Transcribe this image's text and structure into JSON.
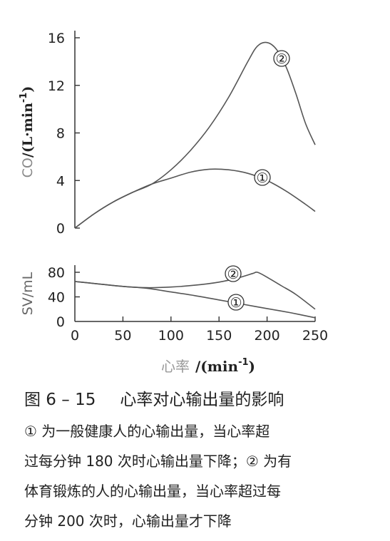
{
  "chart_data": [
    {
      "type": "line",
      "ylabel_prefix": "CO",
      "ylabel_units": "/(L·min",
      "ylabel_exp": "-1",
      "ylabel_close": ")",
      "ylim": [
        0,
        16
      ],
      "yticks": [
        "0",
        "4",
        "8",
        "12",
        "16"
      ],
      "ytick_values": [
        0,
        4,
        8,
        12,
        16
      ],
      "xlim": [
        0,
        250
      ],
      "grid": false,
      "series": [
        {
          "name": "①",
          "x": [
            0,
            20,
            40,
            60,
            80,
            100,
            120,
            140,
            160,
            180,
            200,
            220,
            240,
            250
          ],
          "y": [
            0,
            1.2,
            2.2,
            3.0,
            3.7,
            4.2,
            4.7,
            4.95,
            4.9,
            4.6,
            4.0,
            3.1,
            2.0,
            1.4
          ]
        },
        {
          "name": "②",
          "x": [
            0,
            20,
            40,
            60,
            80,
            100,
            120,
            140,
            160,
            180,
            190,
            200,
            210,
            220,
            230,
            240,
            250
          ],
          "y": [
            0,
            1.2,
            2.2,
            3.0,
            3.7,
            4.9,
            6.5,
            8.5,
            11.0,
            14.0,
            15.3,
            15.6,
            15.0,
            13.5,
            11.3,
            8.8,
            7.0
          ]
        }
      ]
    },
    {
      "type": "line",
      "ylabel": "SV/mL",
      "ylim": [
        0,
        80
      ],
      "yticks": [
        "0",
        "40",
        "80"
      ],
      "ytick_values": [
        0,
        40,
        80
      ],
      "xlabel_prefix": "心率",
      "xlabel_units": "/(min",
      "xlabel_exp": "-1",
      "xlabel_close": ")",
      "xlim": [
        0,
        250
      ],
      "xticks": [
        "0",
        "50",
        "100",
        "150",
        "200",
        "250"
      ],
      "xtick_values": [
        0,
        50,
        100,
        150,
        200,
        250
      ],
      "grid": false,
      "series": [
        {
          "name": "①",
          "x": [
            0,
            25,
            50,
            75,
            100,
            125,
            150,
            175,
            200,
            225,
            250
          ],
          "y": [
            65,
            61,
            57,
            54,
            48,
            42,
            35,
            28,
            21,
            14,
            6
          ]
        },
        {
          "name": "②",
          "x": [
            0,
            25,
            50,
            75,
            100,
            125,
            150,
            170,
            185,
            190,
            200,
            215,
            230,
            250
          ],
          "y": [
            65,
            61,
            57,
            55,
            56,
            59,
            64,
            71,
            78,
            80,
            72,
            58,
            44,
            20
          ]
        }
      ]
    }
  ],
  "caption": {
    "number": "图 6 – 15",
    "title": "心率对心输出量的影响",
    "lines": [
      "① 为一般健康人的心输出量，当心率超",
      "过每分钟 180 次时心输出量下降；② 为有",
      "体育锻炼的人的心输出量，当心率超过每",
      "分钟 200 次时，心输出量才下降"
    ]
  }
}
